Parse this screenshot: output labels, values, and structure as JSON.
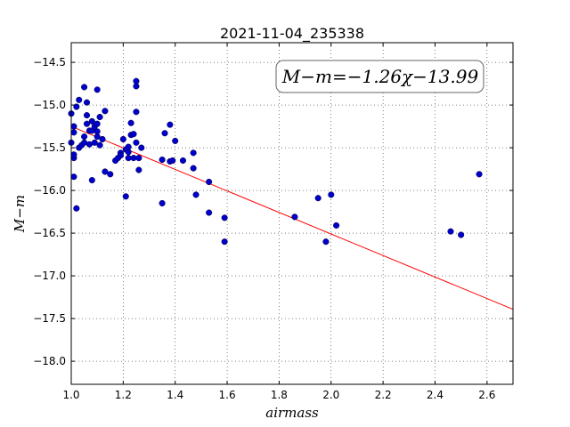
{
  "chart_data": {
    "type": "scatter",
    "title": "2021-11-04_235338",
    "xlabel": "airmass",
    "ylabel": "M−m",
    "xlim": [
      1.0,
      2.7
    ],
    "ylim": [
      -18.27,
      -14.27
    ],
    "y_inverted": true,
    "grid": true,
    "x_ticks": [
      1.0,
      1.2,
      1.4,
      1.6,
      1.8,
      2.0,
      2.2,
      2.4,
      2.6
    ],
    "x_tick_labels": [
      "1.0",
      "1.2",
      "1.4",
      "1.6",
      "1.8",
      "2.0",
      "2.2",
      "2.4",
      "2.6"
    ],
    "y_ticks": [
      -14.5,
      -15.0,
      -15.5,
      -16.0,
      -16.5,
      -17.0,
      -17.5,
      -18.0
    ],
    "y_tick_labels": [
      "−14.5",
      "−15.0",
      "−15.5",
      "−16.0",
      "−16.5",
      "−17.0",
      "−17.5",
      "−18.0"
    ],
    "annotation": "M−m=−1.26χ−13.99",
    "annotation_placement": "top-right",
    "marker_color": "#0000cc",
    "fit_color": "#ff0000",
    "fit": {
      "slope": -1.26,
      "intercept": -13.99
    },
    "points": [
      [
        1.0,
        -15.1
      ],
      [
        1.01,
        -15.25
      ],
      [
        1.01,
        -15.32
      ],
      [
        1.0,
        -15.44
      ],
      [
        1.01,
        -15.62
      ],
      [
        1.01,
        -15.58
      ],
      [
        1.01,
        -15.84
      ],
      [
        1.02,
        -16.21
      ],
      [
        1.02,
        -15.02
      ],
      [
        1.03,
        -14.94
      ],
      [
        1.03,
        -15.5
      ],
      [
        1.04,
        -15.47
      ],
      [
        1.05,
        -14.79
      ],
      [
        1.05,
        -15.44
      ],
      [
        1.05,
        -15.37
      ],
      [
        1.06,
        -14.97
      ],
      [
        1.06,
        -15.12
      ],
      [
        1.06,
        -15.22
      ],
      [
        1.07,
        -15.46
      ],
      [
        1.07,
        -15.3
      ],
      [
        1.08,
        -15.19
      ],
      [
        1.08,
        -15.3
      ],
      [
        1.08,
        -15.88
      ],
      [
        1.09,
        -15.44
      ],
      [
        1.09,
        -15.25
      ],
      [
        1.1,
        -14.82
      ],
      [
        1.1,
        -15.22
      ],
      [
        1.1,
        -15.31
      ],
      [
        1.1,
        -15.37
      ],
      [
        1.11,
        -15.47
      ],
      [
        1.11,
        -15.14
      ],
      [
        1.12,
        -15.4
      ],
      [
        1.13,
        -15.07
      ],
      [
        1.13,
        -15.78
      ],
      [
        1.15,
        -15.81
      ],
      [
        1.17,
        -15.65
      ],
      [
        1.18,
        -15.62
      ],
      [
        1.19,
        -15.56
      ],
      [
        1.19,
        -15.59
      ],
      [
        1.2,
        -15.4
      ],
      [
        1.21,
        -15.52
      ],
      [
        1.21,
        -16.07
      ],
      [
        1.22,
        -15.55
      ],
      [
        1.22,
        -15.49
      ],
      [
        1.22,
        -15.62
      ],
      [
        1.23,
        -15.21
      ],
      [
        1.23,
        -15.35
      ],
      [
        1.24,
        -15.62
      ],
      [
        1.24,
        -15.34
      ],
      [
        1.25,
        -15.44
      ],
      [
        1.25,
        -14.72
      ],
      [
        1.25,
        -14.78
      ],
      [
        1.25,
        -15.08
      ],
      [
        1.26,
        -15.62
      ],
      [
        1.26,
        -15.76
      ],
      [
        1.27,
        -15.5
      ],
      [
        1.35,
        -15.64
      ],
      [
        1.35,
        -16.15
      ],
      [
        1.36,
        -15.33
      ],
      [
        1.38,
        -15.23
      ],
      [
        1.38,
        -15.66
      ],
      [
        1.39,
        -15.65
      ],
      [
        1.4,
        -15.42
      ],
      [
        1.43,
        -15.65
      ],
      [
        1.47,
        -15.56
      ],
      [
        1.47,
        -15.74
      ],
      [
        1.48,
        -16.05
      ],
      [
        1.53,
        -16.26
      ],
      [
        1.53,
        -15.9
      ],
      [
        1.59,
        -16.6
      ],
      [
        1.59,
        -16.32
      ],
      [
        1.86,
        -16.31
      ],
      [
        1.95,
        -16.09
      ],
      [
        1.98,
        -16.6
      ],
      [
        2.0,
        -16.05
      ],
      [
        2.02,
        -16.41
      ],
      [
        2.46,
        -16.48
      ],
      [
        2.5,
        -16.52
      ],
      [
        2.57,
        -15.81
      ]
    ]
  }
}
